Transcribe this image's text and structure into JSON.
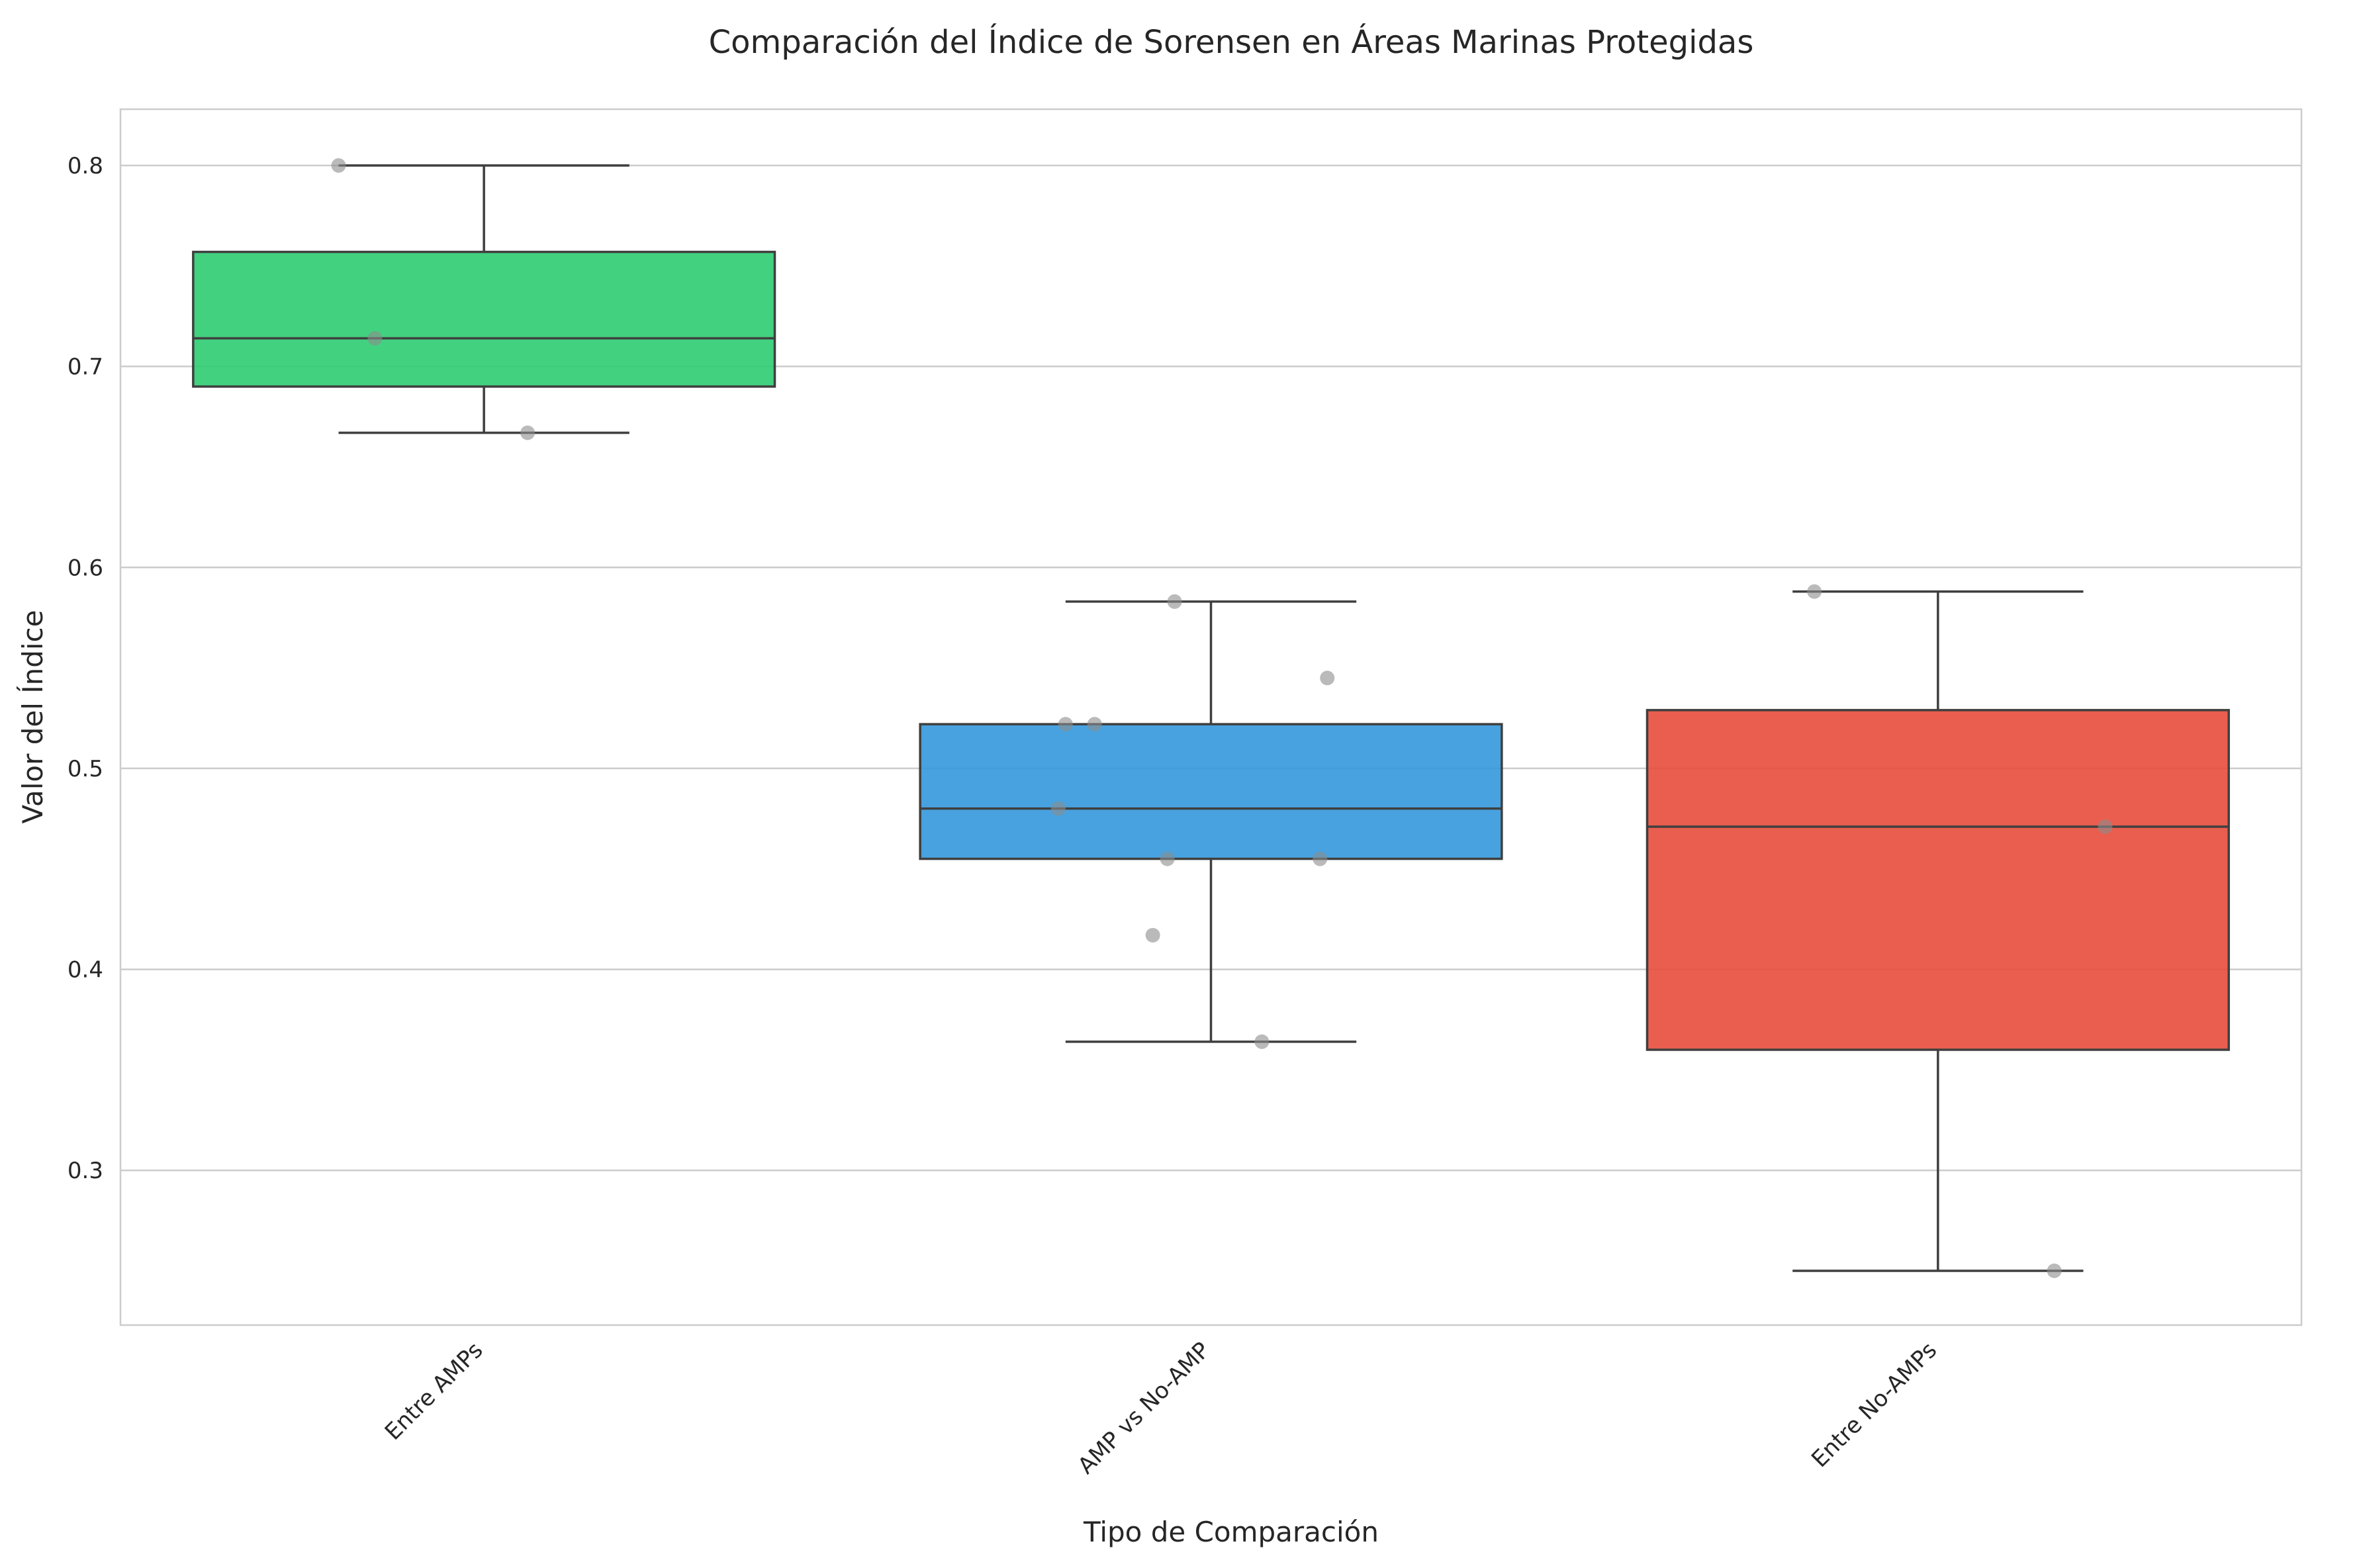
{
  "chart_data": {
    "type": "boxplot",
    "title": "Comparación del Índice de Sorensen en Áreas Marinas Protegidas",
    "xlabel": "Tipo de Comparación",
    "ylabel": "Valor del Índice",
    "ylim": [
      0.223,
      0.828
    ],
    "yticks": [
      0.3,
      0.4,
      0.5,
      0.6,
      0.7,
      0.8
    ],
    "ytick_labels": [
      "0.3",
      "0.4",
      "0.5",
      "0.6",
      "0.7",
      "0.8"
    ],
    "grid": "horizontal",
    "categories": [
      "Entre AMPs",
      "AMP vs No-AMP",
      "Entre No-AMPs"
    ],
    "boxes": [
      {
        "category": "Entre AMPs",
        "color": "#2ecc71",
        "whisker_low": 0.667,
        "q1": 0.69,
        "median": 0.714,
        "q3": 0.757,
        "whisker_high": 0.8
      },
      {
        "category": "AMP vs No-AMP",
        "color": "#3498db",
        "whisker_low": 0.364,
        "q1": 0.455,
        "median": 0.48,
        "q3": 0.522,
        "whisker_high": 0.583
      },
      {
        "category": "Entre No-AMPs",
        "color": "#e74c3c",
        "whisker_low": 0.25,
        "q1": 0.36,
        "median": 0.471,
        "q3": 0.529,
        "whisker_high": 0.588
      }
    ],
    "points": [
      {
        "category": "Entre AMPs",
        "jitter": -0.2,
        "value": 0.8
      },
      {
        "category": "Entre AMPs",
        "jitter": -0.15,
        "value": 0.714
      },
      {
        "category": "Entre AMPs",
        "jitter": 0.06,
        "value": 0.667
      },
      {
        "category": "AMP vs No-AMP",
        "jitter": -0.05,
        "value": 0.583
      },
      {
        "category": "AMP vs No-AMP",
        "jitter": 0.16,
        "value": 0.545
      },
      {
        "category": "AMP vs No-AMP",
        "jitter": -0.2,
        "value": 0.522
      },
      {
        "category": "AMP vs No-AMP",
        "jitter": -0.16,
        "value": 0.522
      },
      {
        "category": "AMP vs No-AMP",
        "jitter": -0.21,
        "value": 0.48
      },
      {
        "category": "AMP vs No-AMP",
        "jitter": -0.06,
        "value": 0.455
      },
      {
        "category": "AMP vs No-AMP",
        "jitter": 0.15,
        "value": 0.455
      },
      {
        "category": "AMP vs No-AMP",
        "jitter": -0.08,
        "value": 0.417
      },
      {
        "category": "AMP vs No-AMP",
        "jitter": 0.07,
        "value": 0.364
      },
      {
        "category": "Entre No-AMPs",
        "jitter": -0.17,
        "value": 0.588
      },
      {
        "category": "Entre No-AMPs",
        "jitter": 0.23,
        "value": 0.471
      },
      {
        "category": "Entre No-AMPs",
        "jitter": 0.16,
        "value": 0.25
      }
    ],
    "colors": {
      "box_edge": "#3f3f3f",
      "grid": "#cccccc",
      "frame": "#cccccc",
      "point": "#8c8c8c",
      "text": "#262626"
    }
  }
}
